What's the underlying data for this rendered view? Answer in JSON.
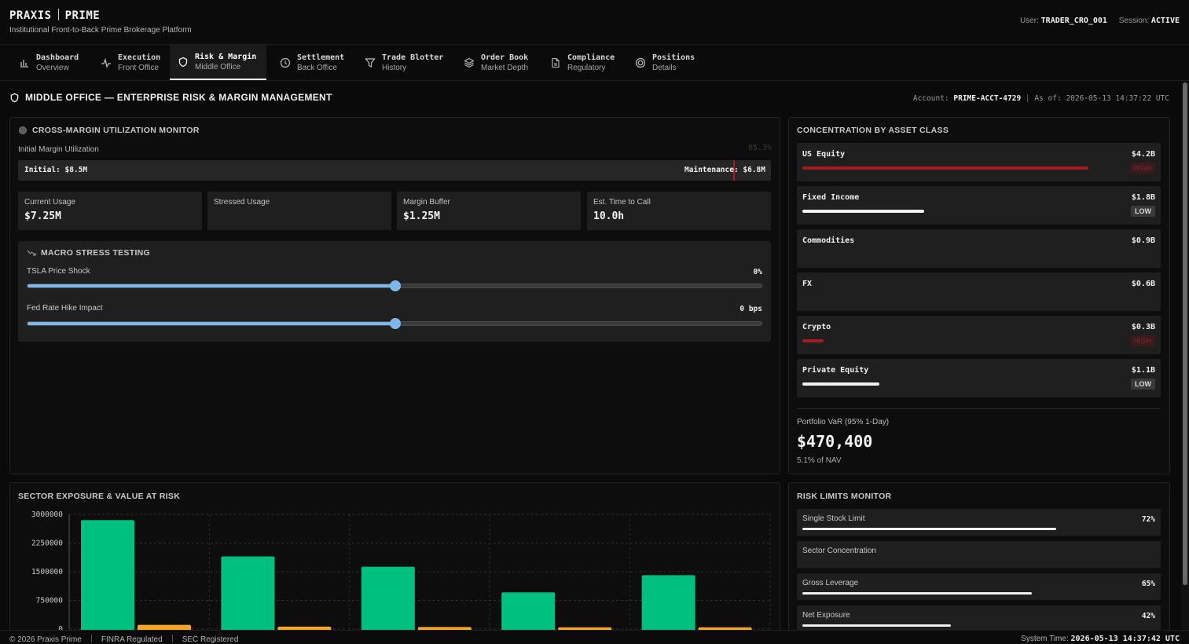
{
  "header": {
    "brand_left": "PRAXIS",
    "brand_right": "PRIME",
    "tagline": "Institutional Front-to-Back Prime Brokerage Platform",
    "user_label": "User:",
    "user_value": "TRADER_CRO_001",
    "session_label": "Session:",
    "session_value": "ACTIVE"
  },
  "tabs": [
    {
      "title": "Dashboard",
      "subtitle": "Overview",
      "icon": "bar-chart-icon"
    },
    {
      "title": "Execution",
      "subtitle": "Front Office",
      "icon": "activity-icon"
    },
    {
      "title": "Risk & Margin",
      "subtitle": "Middle Office",
      "icon": "shield-icon",
      "active": true
    },
    {
      "title": "Settlement",
      "subtitle": "Back Office",
      "icon": "clock-icon"
    },
    {
      "title": "Trade Blotter",
      "subtitle": "History",
      "icon": "filter-icon"
    },
    {
      "title": "Order Book",
      "subtitle": "Market Depth",
      "icon": "layers-icon"
    },
    {
      "title": "Compliance",
      "subtitle": "Regulatory",
      "icon": "document-icon"
    },
    {
      "title": "Positions",
      "subtitle": "Details",
      "icon": "target-icon"
    }
  ],
  "section": {
    "title": "MIDDLE OFFICE — ENTERPRISE RISK & MARGIN MANAGEMENT",
    "account_label": "Account:",
    "account_value": "PRIME-ACCT-4729",
    "asof_label": "As of:",
    "asof_value": "2026-05-13 14:37:22 UTC"
  },
  "margin_monitor": {
    "title": "CROSS-MARGIN UTILIZATION MONITOR",
    "util_label": "Initial Margin Utilization",
    "util_pct": "85.3%",
    "initial": "Initial: $8.5M",
    "maintenance": "Maintenance: $6.8M",
    "kpis": [
      {
        "label": "Current Usage",
        "value": "$7.25M"
      },
      {
        "label": "Stressed Usage",
        "value": ""
      },
      {
        "label": "Margin Buffer",
        "value": "$1.25M"
      },
      {
        "label": "Est. Time to Call",
        "value": "10.0h"
      }
    ]
  },
  "stress": {
    "title": "MACRO STRESS TESTING",
    "rows": [
      {
        "label": "TSLA Price Shock",
        "value": "0%",
        "position": 0.5
      },
      {
        "label": "Fed Rate Hike Impact",
        "value": "0 bps",
        "position": 0.5
      }
    ]
  },
  "concentration": {
    "title": "CONCENTRATION BY ASSET CLASS",
    "items": [
      {
        "name": "US Equity",
        "value": "$4.2B",
        "fill": 0.89,
        "color": "#a31c24",
        "badge": "HIGH",
        "badge_type": "high"
      },
      {
        "name": "Fixed Income",
        "value": "$1.8B",
        "fill": 0.38,
        "color": "#f0f0f0",
        "badge": "LOW",
        "badge_type": "low"
      },
      {
        "name": "Commodities",
        "value": "$0.9B",
        "fill": 0,
        "color": "#f0f0f0",
        "badge": "",
        "badge_type": ""
      },
      {
        "name": "FX",
        "value": "$0.6B",
        "fill": 0,
        "color": "#f0f0f0",
        "badge": "",
        "badge_type": ""
      },
      {
        "name": "Crypto",
        "value": "$0.3B",
        "fill": 0.065,
        "color": "#a31c24",
        "badge": "HIGH",
        "badge_type": "high"
      },
      {
        "name": "Private Equity",
        "value": "$1.1B",
        "fill": 0.24,
        "color": "#f0f0f0",
        "badge": "LOW",
        "badge_type": "low"
      }
    ],
    "var_label": "Portfolio VaR (95% 1-Day)",
    "var_value": "$470,400",
    "var_sub": "5.1% of NAV"
  },
  "sector_chart": {
    "title": "SECTOR EXPOSURE & VALUE AT RISK",
    "colors": {
      "exposure": "#00c07f",
      "var": "#f5a623"
    }
  },
  "chart_data": {
    "type": "bar",
    "title": "SECTOR EXPOSURE & VALUE AT RISK",
    "ylim": [
      0,
      3000000
    ],
    "yticks": [
      "3000000",
      "2250000",
      "1500000",
      "750000",
      "0"
    ],
    "categories": [
      "",
      "",
      "",
      "",
      ""
    ],
    "series": [
      {
        "values": [
          2850000,
          1900000,
          1630000,
          960000,
          1410000
        ]
      },
      {
        "values": [
          110000,
          65000,
          55000,
          45000,
          45000
        ]
      }
    ],
    "grid": true
  },
  "risk_limits": {
    "title": "RISK LIMITS MONITOR",
    "items": [
      {
        "name": "Single Stock Limit",
        "value": "72%",
        "fill": 0.72
      },
      {
        "name": "Sector Concentration",
        "value": "",
        "fill": 0
      },
      {
        "name": "Gross Leverage",
        "value": "65%",
        "fill": 0.65
      },
      {
        "name": "Net Exposure",
        "value": "42%",
        "fill": 0.42
      }
    ]
  },
  "footer": {
    "copyright": "© 2026 Praxis Prime",
    "reg1": "FINRA Regulated",
    "reg2": "SEC Registered",
    "time_label": "System Time:",
    "time_value": "2026-05-13 14:37:42 UTC"
  }
}
